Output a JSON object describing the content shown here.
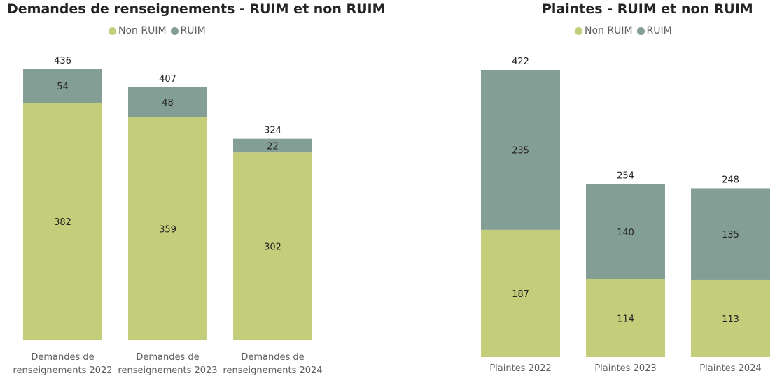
{
  "colors": {
    "non_ruim": "#c4ce7a",
    "ruim": "#839e95"
  },
  "left_panel": {
    "title": "Demandes de renseignements - RUIM et non RUIM",
    "legend": [
      {
        "label": "Non RUIM",
        "color": "#c4ce7a"
      },
      {
        "label": "RUIM",
        "color": "#839e95"
      }
    ]
  },
  "right_panel": {
    "title": "Plaintes - RUIM et non RUIM",
    "legend": [
      {
        "label": "Non RUIM",
        "color": "#c4ce7a"
      },
      {
        "label": "RUIM",
        "color": "#839e95"
      }
    ]
  },
  "chart_data": [
    {
      "type": "bar",
      "stacked": true,
      "title": "Demandes de renseignements - RUIM et non RUIM",
      "categories": [
        [
          "Demandes de",
          "renseignements 2022"
        ],
        [
          "Demandes de",
          "renseignements 2023"
        ],
        [
          "Demandes de",
          "renseignements 2024"
        ]
      ],
      "series": [
        {
          "name": "Non RUIM",
          "color": "#c4ce7a",
          "values": [
            382,
            359,
            302
          ]
        },
        {
          "name": "RUIM",
          "color": "#839e95",
          "values": [
            54,
            48,
            22
          ]
        }
      ],
      "totals": [
        436,
        407,
        324
      ],
      "legend_position": "top",
      "grid": false
    },
    {
      "type": "bar",
      "stacked": true,
      "title": "Plaintes - RUIM et non RUIM",
      "categories": [
        [
          "Plaintes 2022"
        ],
        [
          "Plaintes 2023"
        ],
        [
          "Plaintes 2024"
        ]
      ],
      "series": [
        {
          "name": "Non RUIM",
          "color": "#c4ce7a",
          "values": [
            187,
            114,
            113
          ]
        },
        {
          "name": "RUIM",
          "color": "#839e95",
          "values": [
            235,
            140,
            135
          ]
        }
      ],
      "totals": [
        422,
        254,
        248
      ],
      "legend_position": "top",
      "grid": false
    }
  ]
}
